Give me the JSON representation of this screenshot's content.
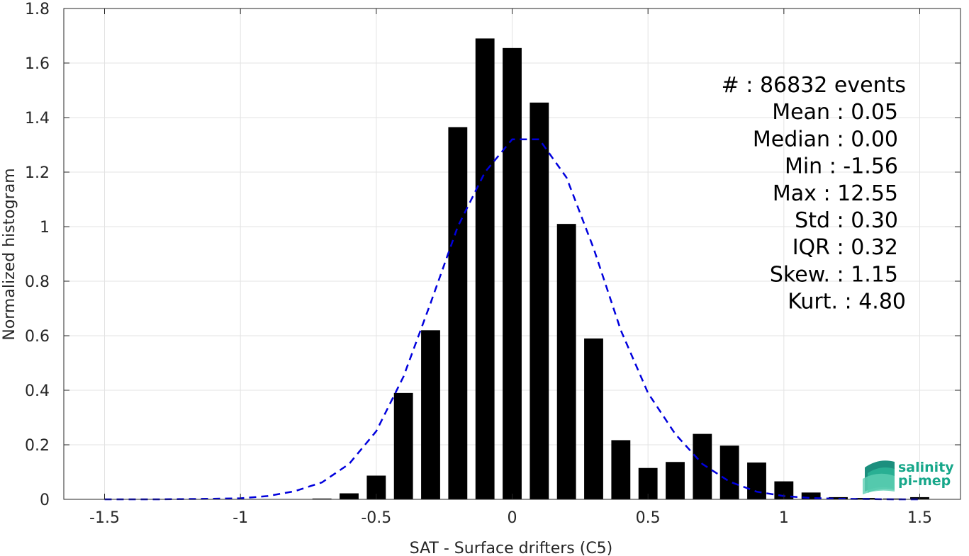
{
  "chart_data": {
    "type": "bar",
    "title": "",
    "xlabel": "SAT - Surface drifters (C5)",
    "ylabel": "Normalized histogram",
    "xlim": [
      -1.65,
      1.65
    ],
    "ylim": [
      0,
      1.8
    ],
    "grid": true,
    "x_ticks": [
      "-1.5",
      "-1",
      "-0.5",
      "0",
      "0.5",
      "1",
      "1.5"
    ],
    "x_tick_values": [
      -1.5,
      -1,
      -0.5,
      0,
      0.5,
      1,
      1.5
    ],
    "y_ticks": [
      "0",
      "0.2",
      "0.4",
      "0.6",
      "0.8",
      "1",
      "1.2",
      "1.4",
      "1.6",
      "1.8"
    ],
    "y_tick_values": [
      0,
      0.2,
      0.4,
      0.6,
      0.8,
      1,
      1.2,
      1.4,
      1.6,
      1.8
    ],
    "bar_color": "#000000",
    "bars": {
      "x": [
        -0.7,
        -0.6,
        -0.5,
        -0.4,
        -0.3,
        -0.2,
        -0.1,
        0.0,
        0.1,
        0.2,
        0.3,
        0.4,
        0.5,
        0.6,
        0.7,
        0.8,
        0.9,
        1.0,
        1.1,
        1.2,
        1.3,
        1.4,
        1.5
      ],
      "values": [
        0.003,
        0.022,
        0.087,
        0.39,
        0.62,
        1.365,
        1.69,
        1.655,
        1.455,
        1.01,
        0.59,
        0.217,
        0.115,
        0.137,
        0.24,
        0.197,
        0.135,
        0.066,
        0.025,
        0.008,
        0.005,
        0.003,
        0.008
      ]
    },
    "fit_curve": {
      "style": "dashed",
      "color": "#0000dd",
      "x": [
        -1.5,
        -1.4,
        -1.3,
        -1.2,
        -1.1,
        -1.0,
        -0.9,
        -0.8,
        -0.7,
        -0.6,
        -0.5,
        -0.4,
        -0.3,
        -0.2,
        -0.1,
        0.0,
        0.1,
        0.2,
        0.3,
        0.4,
        0.5,
        0.6,
        0.7,
        0.8,
        0.9,
        1.0,
        1.1,
        1.2,
        1.3,
        1.4,
        1.5
      ],
      "y": [
        0.0,
        0.0,
        0.0,
        0.001,
        0.002,
        0.004,
        0.012,
        0.03,
        0.062,
        0.13,
        0.25,
        0.45,
        0.72,
        1.0,
        1.2,
        1.32,
        1.32,
        1.18,
        0.92,
        0.62,
        0.39,
        0.24,
        0.13,
        0.065,
        0.028,
        0.012,
        0.005,
        0.002,
        0.001,
        0.0,
        0.0
      ]
    },
    "stats": [
      "#  : 86832 events",
      "Mean : 0.05",
      "Median : 0.00",
      "Min : -1.56",
      "Max : 12.55",
      "Std : 0.30",
      "IQR : 0.32",
      "Skew. : 1.15",
      "Kurt. : 4.80"
    ]
  },
  "logo": {
    "line1": "salinity",
    "line2": "pi-mep",
    "color": "#17a78a"
  }
}
